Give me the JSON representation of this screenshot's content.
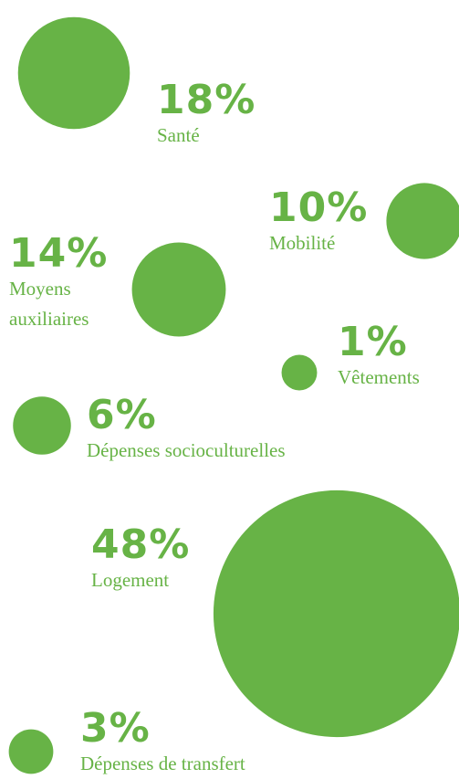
{
  "chart_data": {
    "type": "bubble",
    "categories": [
      "Santé",
      "Mobilité",
      "Moyens auxiliaires",
      "Vêtements",
      "Dépenses socioculturelles",
      "Logement",
      "Dépenses de transfert"
    ],
    "values": [
      18,
      10,
      14,
      1,
      6,
      48,
      3
    ],
    "value_labels": [
      "18%",
      "10%",
      "14%",
      "1%",
      "6%",
      "48%",
      "3%"
    ],
    "color": "#67b346"
  }
}
